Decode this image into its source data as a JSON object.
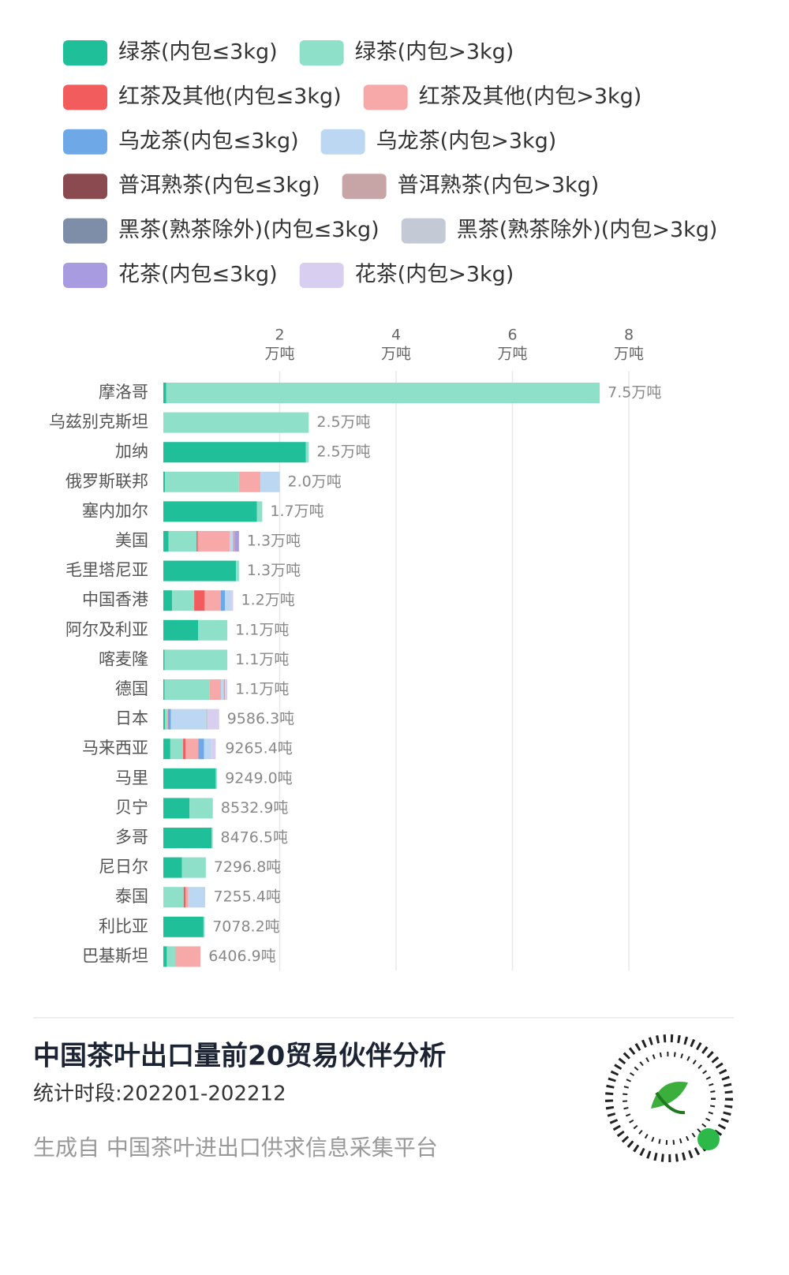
{
  "chart_data": {
    "type": "stacked-bar-horizontal",
    "categories": [
      "摩洛哥",
      "乌兹别克斯坦",
      "加纳",
      "俄罗斯联邦",
      "塞内加尔",
      "美国",
      "毛里塔尼亚",
      "中国香港",
      "阿尔及利亚",
      "喀麦隆",
      "德国",
      "日本",
      "马来西亚",
      "马里",
      "贝宁",
      "多哥",
      "尼日尔",
      "泰国",
      "利比亚",
      "巴基斯坦"
    ],
    "series": [
      {
        "name": "绿茶(内包≤3kg)",
        "color": "#1fbf9a",
        "values": [
          0.05,
          0,
          2.45,
          0.03,
          1.61,
          0.09,
          1.25,
          0.15,
          0.6,
          0.02,
          0.02,
          0.03,
          0.12,
          0.9,
          0.45,
          0.83,
          0.32,
          0,
          0.69,
          0.06
        ]
      },
      {
        "name": "绿茶(内包>3kg)",
        "color": "#8ee0c8",
        "values": [
          7.45,
          2.5,
          0.05,
          1.27,
          0.09,
          0.48,
          0.05,
          0.38,
          0.5,
          1.08,
          0.77,
          0.03,
          0.22,
          0.02,
          0.4,
          0.02,
          0.41,
          0.35,
          0.02,
          0.15
        ]
      },
      {
        "name": "红茶及其他(内包≤3kg)",
        "color": "#f25c5c",
        "values": [
          0,
          0,
          0,
          0,
          0,
          0.02,
          0,
          0.18,
          0,
          0,
          0,
          0,
          0.04,
          0,
          0,
          0,
          0,
          0.03,
          0,
          0
        ]
      },
      {
        "name": "红茶及其他(内包>3kg)",
        "color": "#f7a9a9",
        "values": [
          0,
          0,
          0,
          0.37,
          0,
          0.55,
          0,
          0.28,
          0,
          0,
          0.2,
          0.02,
          0.22,
          0,
          0,
          0,
          0,
          0.05,
          0,
          0.43
        ]
      },
      {
        "name": "乌龙茶(内包≤3kg)",
        "color": "#6ea8e6",
        "values": [
          0,
          0,
          0,
          0,
          0,
          0,
          0,
          0.07,
          0,
          0,
          0,
          0.05,
          0.1,
          0,
          0,
          0,
          0,
          0,
          0,
          0
        ]
      },
      {
        "name": "乌龙茶(内包>3kg)",
        "color": "#bcd7f2",
        "values": [
          0,
          0,
          0,
          0.33,
          0,
          0.06,
          0,
          0.1,
          0,
          0,
          0.05,
          0.6,
          0.13,
          0,
          0,
          0,
          0,
          0.29,
          0,
          0
        ]
      },
      {
        "name": "普洱熟茶(内包≤3kg)",
        "color": "#8b4a4f",
        "values": [
          0,
          0,
          0,
          0,
          0,
          0,
          0,
          0,
          0,
          0,
          0,
          0,
          0,
          0,
          0,
          0,
          0,
          0,
          0,
          0
        ]
      },
      {
        "name": "普洱熟茶(内包>3kg)",
        "color": "#c7a5a7",
        "values": [
          0,
          0,
          0,
          0,
          0,
          0.03,
          0,
          0,
          0,
          0,
          0.02,
          0,
          0,
          0,
          0,
          0,
          0,
          0,
          0,
          0
        ]
      },
      {
        "name": "黑茶(熟茶除外)(内包≤3kg)",
        "color": "#7f8ea8",
        "values": [
          0,
          0,
          0,
          0,
          0,
          0,
          0,
          0,
          0,
          0,
          0,
          0,
          0,
          0,
          0,
          0,
          0,
          0,
          0,
          0
        ]
      },
      {
        "name": "黑茶(熟茶除外)(内包>3kg)",
        "color": "#c3cad6",
        "values": [
          0,
          0,
          0,
          0,
          0,
          0,
          0,
          0,
          0,
          0,
          0,
          0.03,
          0,
          0,
          0,
          0,
          0,
          0,
          0,
          0
        ]
      },
      {
        "name": "花茶(内包≤3kg)",
        "color": "#a99be0",
        "values": [
          0,
          0,
          0,
          0,
          0,
          0.07,
          0,
          0,
          0,
          0,
          0,
          0,
          0,
          0,
          0,
          0,
          0,
          0,
          0,
          0
        ]
      },
      {
        "name": "花茶(内包>3kg)",
        "color": "#d8cff0",
        "values": [
          0,
          0,
          0,
          0,
          0,
          0,
          0,
          0.04,
          0,
          0,
          0.04,
          0.2,
          0.07,
          0,
          0,
          0,
          0,
          0,
          0,
          0
        ]
      }
    ],
    "totals": [
      7.5,
      2.5,
      2.5,
      2.0,
      1.7,
      1.3,
      1.3,
      1.2,
      1.1,
      1.1,
      1.1,
      0.95863,
      0.92654,
      0.9249,
      0.85329,
      0.84765,
      0.72968,
      0.72554,
      0.70782,
      0.64069
    ],
    "total_labels": [
      "7.5万吨",
      "2.5万吨",
      "2.5万吨",
      "2.0万吨",
      "1.7万吨",
      "1.3万吨",
      "1.3万吨",
      "1.2万吨",
      "1.1万吨",
      "1.1万吨",
      "1.1万吨",
      "9586.3吨",
      "9265.4吨",
      "9249.0吨",
      "8532.9吨",
      "8476.5吨",
      "7296.8吨",
      "7255.4吨",
      "7078.2吨",
      "6406.9吨"
    ],
    "xlim": [
      0,
      8.8
    ],
    "xticks": [
      2,
      4,
      6,
      8
    ],
    "xtick_unit": "万吨",
    "grid": true
  },
  "footer": {
    "title": "中国茶叶出口量前20贸易伙伴分析",
    "period": "统计时段:202201-202212",
    "source": "生成自 中国茶叶进出口供求信息采集平台"
  }
}
